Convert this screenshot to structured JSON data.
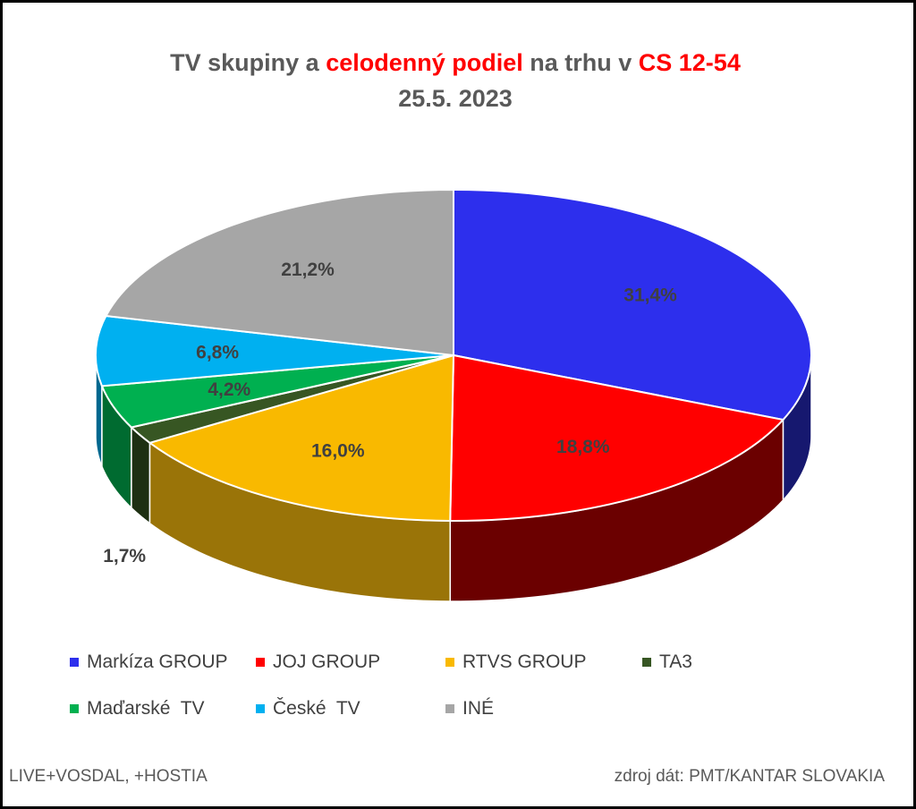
{
  "title": {
    "part1": "TV skupiny a ",
    "part2": "celodenný podiel",
    "part3": " na trhu v ",
    "part4": "CS 12-54",
    "line2": "25.5. 2023"
  },
  "chart_data": {
    "type": "pie",
    "categories": [
      "Markíza GROUP",
      "JOJ GROUP",
      "RTVS GROUP",
      "TA3",
      "Maďarské  TV",
      "České  TV",
      "INÉ"
    ],
    "values": [
      31.4,
      18.8,
      16.0,
      1.7,
      4.2,
      6.8,
      21.2
    ],
    "labels": [
      "31,4%",
      "18,8%",
      "16,0%",
      "1,7%",
      "4,2%",
      "6,8%",
      "21,2%"
    ],
    "colors": [
      "#2d2fed",
      "#ff0000",
      "#f9b900",
      "#375623",
      "#00b050",
      "#00b0f0",
      "#a6a6a6"
    ],
    "side_colors": [
      "#16186f",
      "#6b0000",
      "#9a7408",
      "#1e3013",
      "#006b30",
      "#00688f",
      "#5e5e5e"
    ],
    "legend_position": "bottom"
  },
  "footer": {
    "left": "LIVE+VOSDAL,  +HOSTIA",
    "right": "zdroj dát: PMT/KANTAR SLOVAKIA"
  }
}
